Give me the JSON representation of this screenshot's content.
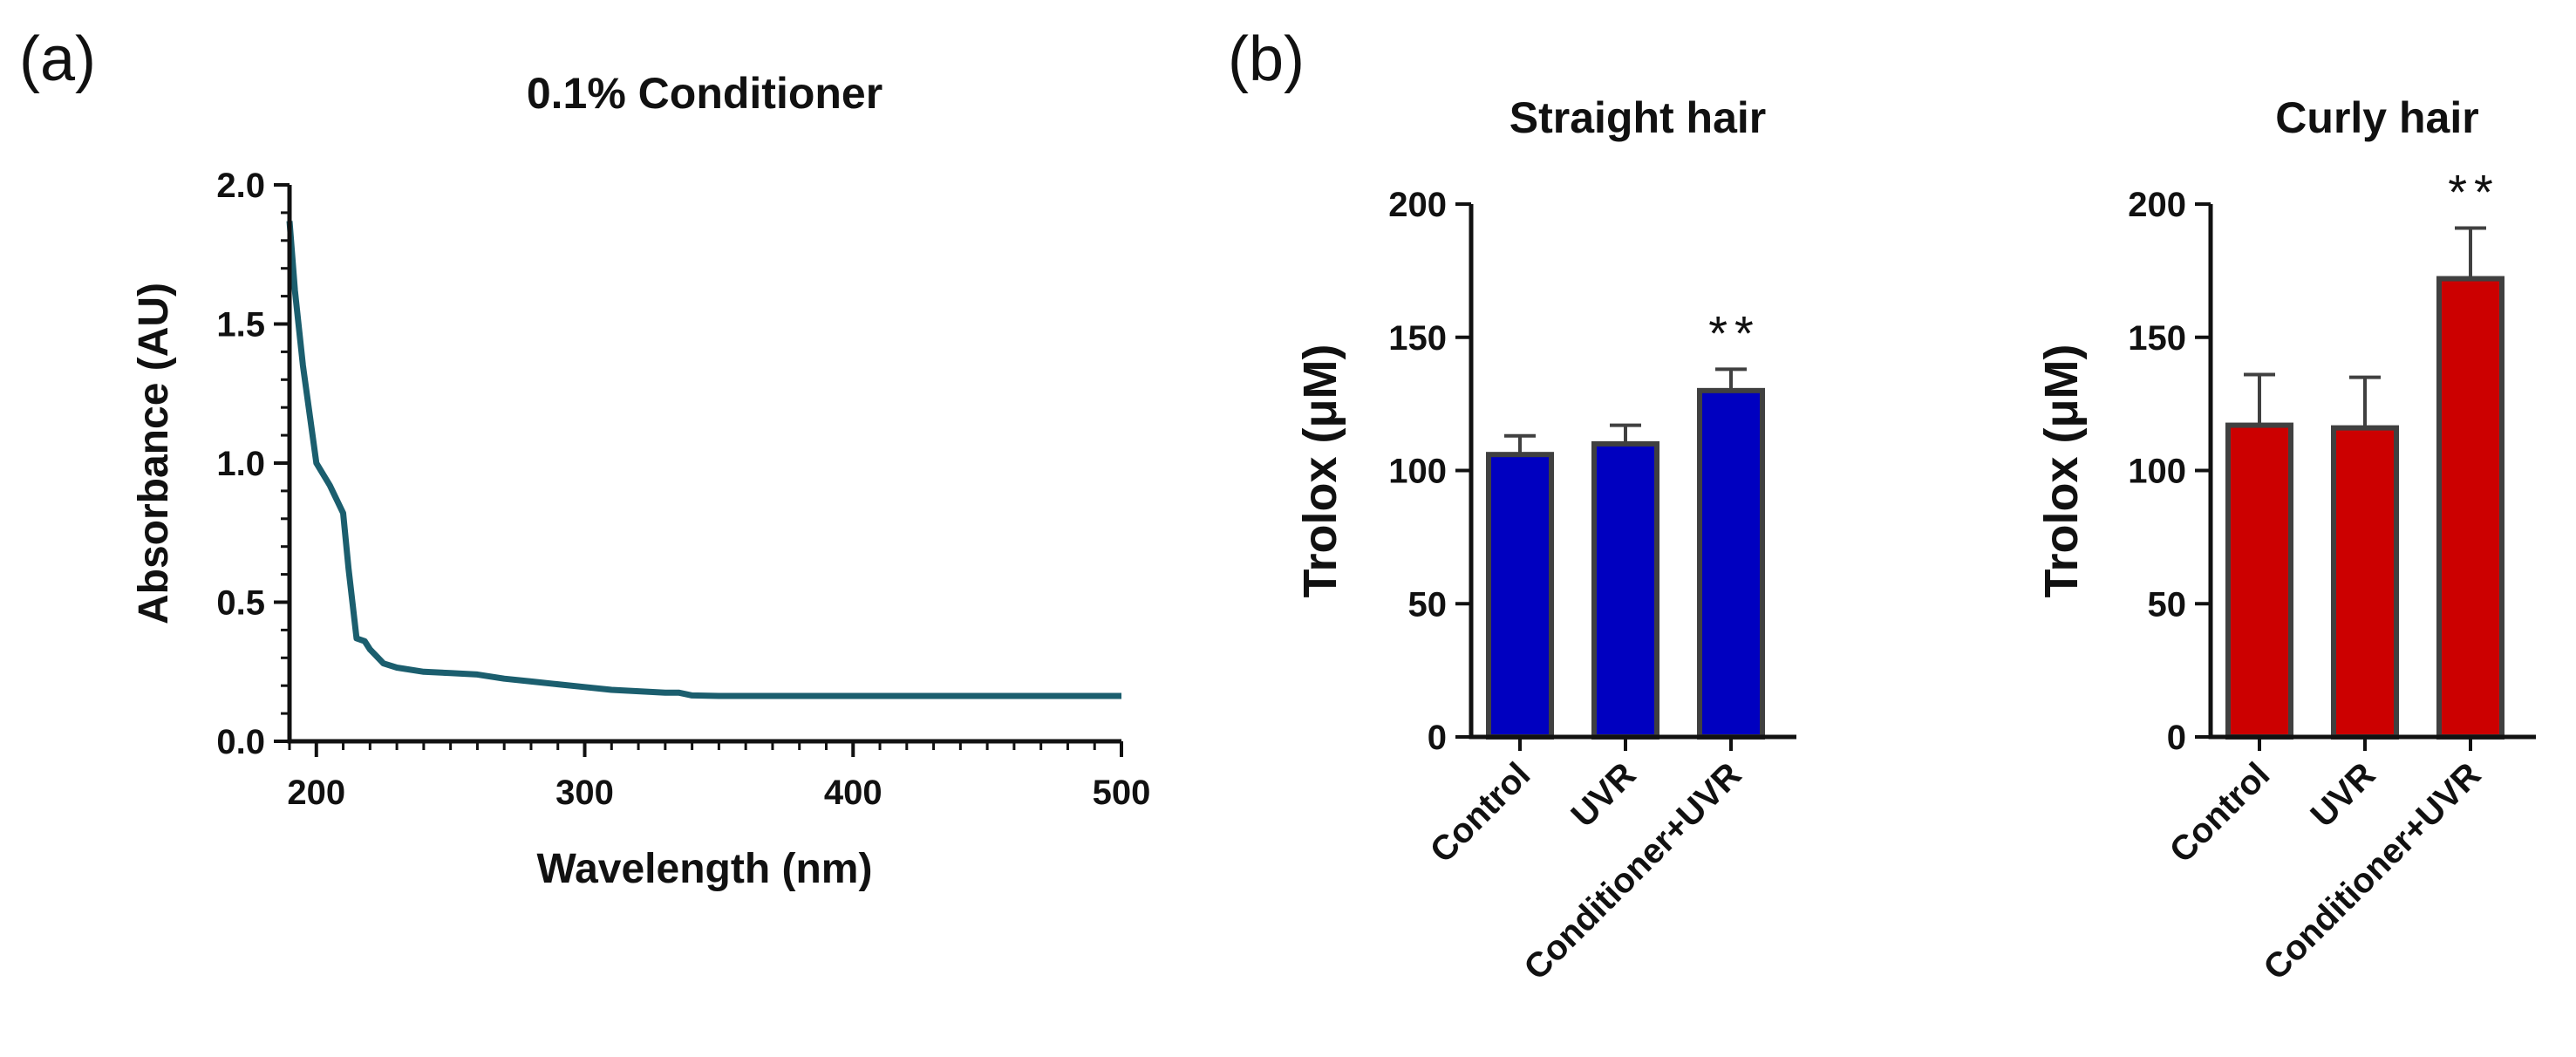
{
  "figure": {
    "panel_a_label": "(a)",
    "panel_b_label": "(b)"
  },
  "chart_data": [
    {
      "id": "absorbance",
      "type": "line",
      "title": "0.1% Conditioner",
      "xlabel": "Wavelength (nm)",
      "ylabel": "Absorbance (AU)",
      "xlim": [
        190,
        500
      ],
      "ylim": [
        0.0,
        2.0
      ],
      "xticks": [
        200,
        300,
        400,
        500
      ],
      "xtick_labels": [
        "200",
        "300",
        "400",
        "500"
      ],
      "yticks": [
        0.0,
        0.5,
        1.0,
        1.5,
        2.0
      ],
      "ytick_labels": [
        "0.0",
        "0.5",
        "1.0",
        "1.5",
        "2.0"
      ],
      "series": [
        {
          "name": "0.1% Conditioner",
          "color": "#1b5e6e",
          "x": [
            190,
            192,
            195,
            200,
            205,
            210,
            212,
            215,
            218,
            220,
            222,
            225,
            230,
            240,
            250,
            260,
            270,
            280,
            290,
            300,
            310,
            320,
            330,
            335,
            340,
            350,
            360,
            400,
            450,
            500
          ],
          "y": [
            1.87,
            1.62,
            1.35,
            1.0,
            0.92,
            0.82,
            0.62,
            0.37,
            0.36,
            0.33,
            0.31,
            0.28,
            0.265,
            0.25,
            0.245,
            0.24,
            0.225,
            0.215,
            0.205,
            0.195,
            0.185,
            0.18,
            0.175,
            0.175,
            0.165,
            0.163,
            0.163,
            0.163,
            0.163,
            0.163
          ]
        }
      ]
    },
    {
      "id": "straight",
      "type": "bar",
      "title": "Straight hair",
      "xlabel": "",
      "ylabel": "Trolox (μM)",
      "ylim": [
        0,
        200
      ],
      "yticks": [
        0,
        50,
        100,
        150,
        200
      ],
      "ytick_labels": [
        "0",
        "50",
        "100",
        "150",
        "200"
      ],
      "categories": [
        "Control",
        "UVR",
        "Conditioner+UVR"
      ],
      "values": [
        106,
        110,
        130
      ],
      "errors": [
        7,
        7,
        8
      ],
      "significance": [
        "",
        "",
        "**"
      ],
      "color": "#0000c0"
    },
    {
      "id": "curly",
      "type": "bar",
      "title": "Curly hair",
      "xlabel": "",
      "ylabel": "Trolox (μM)",
      "ylim": [
        0,
        200
      ],
      "yticks": [
        0,
        50,
        100,
        150,
        200
      ],
      "ytick_labels": [
        "0",
        "50",
        "100",
        "150",
        "200"
      ],
      "categories": [
        "Control",
        "UVR",
        "Conditioner+UVR"
      ],
      "values": [
        117,
        116,
        172
      ],
      "errors": [
        19,
        19,
        19
      ],
      "significance": [
        "",
        "",
        "**"
      ],
      "color": "#cc0000"
    }
  ]
}
